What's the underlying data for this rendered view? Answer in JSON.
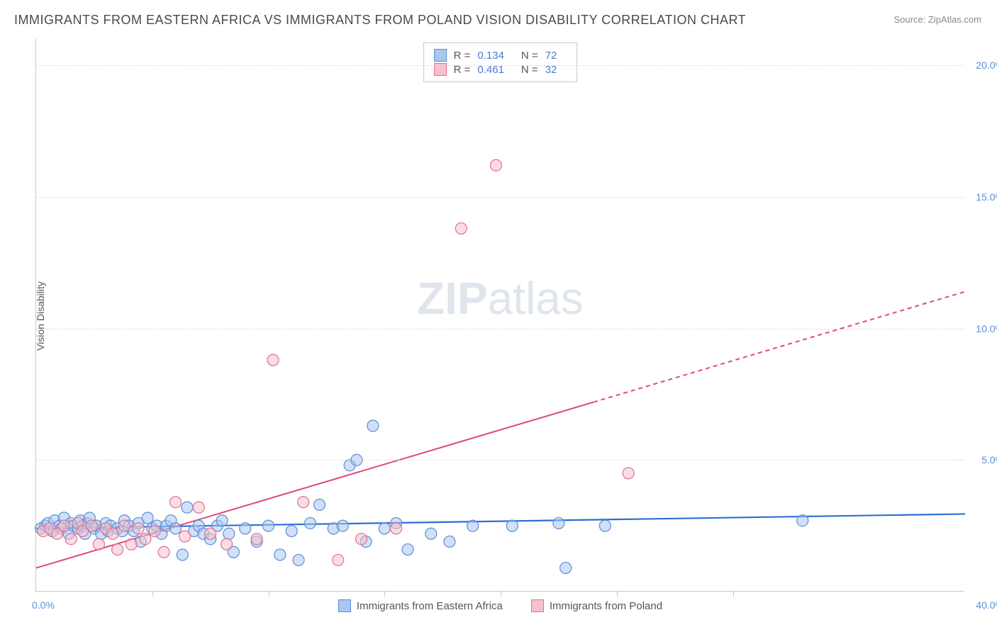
{
  "title": "IMMIGRANTS FROM EASTERN AFRICA VS IMMIGRANTS FROM POLAND VISION DISABILITY CORRELATION CHART",
  "source_prefix": "Source: ",
  "source_name": "ZipAtlas.com",
  "ylabel": "Vision Disability",
  "watermark_bold": "ZIP",
  "watermark_rest": "atlas",
  "chart": {
    "type": "scatter",
    "xlim": [
      0,
      40
    ],
    "ylim": [
      0,
      21
    ],
    "xtick_left": "0.0%",
    "xtick_right": "40.0%",
    "yticks": [
      {
        "v": 5,
        "label": "5.0%"
      },
      {
        "v": 10,
        "label": "10.0%"
      },
      {
        "v": 15,
        "label": "15.0%"
      },
      {
        "v": 20,
        "label": "20.0%"
      }
    ],
    "vgrid_x": [
      5,
      10,
      15,
      20,
      25,
      30
    ],
    "background_color": "#ffffff",
    "grid_color": "#dedede",
    "axis_color": "#c8c8c8",
    "tick_label_color": "#5b8dd6",
    "marker_radius": 8,
    "marker_opacity": 0.55,
    "series": [
      {
        "name": "Immigrants from Eastern Africa",
        "fill": "#a9c7ef",
        "stroke": "#5b8dd6",
        "legend_R": "0.134",
        "legend_N": "72",
        "trend": {
          "x1": 0,
          "y1": 2.4,
          "x2": 40,
          "y2": 2.95,
          "color": "#2a6fd6",
          "width": 2.2,
          "solid_to_x": 40
        },
        "points": [
          [
            0.2,
            2.4
          ],
          [
            0.4,
            2.5
          ],
          [
            0.5,
            2.6
          ],
          [
            0.7,
            2.3
          ],
          [
            0.8,
            2.7
          ],
          [
            1.0,
            2.5
          ],
          [
            1.1,
            2.4
          ],
          [
            1.2,
            2.8
          ],
          [
            1.4,
            2.2
          ],
          [
            1.5,
            2.6
          ],
          [
            1.6,
            2.5
          ],
          [
            1.8,
            2.4
          ],
          [
            1.9,
            2.7
          ],
          [
            2.0,
            2.5
          ],
          [
            2.1,
            2.2
          ],
          [
            2.2,
            2.6
          ],
          [
            2.3,
            2.8
          ],
          [
            2.5,
            2.4
          ],
          [
            2.6,
            2.5
          ],
          [
            2.8,
            2.2
          ],
          [
            3.0,
            2.6
          ],
          [
            3.1,
            2.3
          ],
          [
            3.2,
            2.5
          ],
          [
            3.5,
            2.4
          ],
          [
            3.7,
            2.3
          ],
          [
            3.8,
            2.7
          ],
          [
            4.0,
            2.5
          ],
          [
            4.2,
            2.3
          ],
          [
            4.4,
            2.6
          ],
          [
            4.5,
            1.9
          ],
          [
            4.8,
            2.8
          ],
          [
            5.0,
            2.4
          ],
          [
            5.2,
            2.5
          ],
          [
            5.4,
            2.2
          ],
          [
            5.6,
            2.5
          ],
          [
            5.8,
            2.7
          ],
          [
            6.0,
            2.4
          ],
          [
            6.3,
            1.4
          ],
          [
            6.5,
            3.2
          ],
          [
            6.8,
            2.3
          ],
          [
            7.0,
            2.5
          ],
          [
            7.2,
            2.2
          ],
          [
            7.5,
            2.0
          ],
          [
            7.8,
            2.5
          ],
          [
            8.0,
            2.7
          ],
          [
            8.3,
            2.2
          ],
          [
            8.5,
            1.5
          ],
          [
            9.0,
            2.4
          ],
          [
            9.5,
            1.9
          ],
          [
            10.0,
            2.5
          ],
          [
            10.5,
            1.4
          ],
          [
            11.0,
            2.3
          ],
          [
            11.3,
            1.2
          ],
          [
            11.8,
            2.6
          ],
          [
            12.2,
            3.3
          ],
          [
            12.8,
            2.4
          ],
          [
            13.2,
            2.5
          ],
          [
            13.5,
            4.8
          ],
          [
            13.8,
            5.0
          ],
          [
            14.2,
            1.9
          ],
          [
            14.5,
            6.3
          ],
          [
            15.0,
            2.4
          ],
          [
            15.5,
            2.6
          ],
          [
            16.0,
            1.6
          ],
          [
            17.0,
            2.2
          ],
          [
            17.8,
            1.9
          ],
          [
            18.8,
            2.5
          ],
          [
            20.5,
            2.5
          ],
          [
            22.5,
            2.6
          ],
          [
            22.8,
            0.9
          ],
          [
            24.5,
            2.5
          ],
          [
            33.0,
            2.7
          ]
        ]
      },
      {
        "name": "Immigrants from Poland",
        "fill": "#f4c1cd",
        "stroke": "#e56e8f",
        "legend_R": "0.461",
        "legend_N": "32",
        "trend": {
          "x1": 0,
          "y1": 0.9,
          "x2": 40,
          "y2": 11.4,
          "color": "#e04879",
          "width": 2.0,
          "solid_to_x": 24
        },
        "points": [
          [
            0.3,
            2.3
          ],
          [
            0.6,
            2.4
          ],
          [
            0.9,
            2.2
          ],
          [
            1.2,
            2.5
          ],
          [
            1.5,
            2.0
          ],
          [
            1.8,
            2.6
          ],
          [
            2.0,
            2.3
          ],
          [
            2.4,
            2.5
          ],
          [
            2.7,
            1.8
          ],
          [
            3.0,
            2.4
          ],
          [
            3.3,
            2.2
          ],
          [
            3.5,
            1.6
          ],
          [
            3.8,
            2.5
          ],
          [
            4.1,
            1.8
          ],
          [
            4.4,
            2.4
          ],
          [
            4.7,
            2.0
          ],
          [
            5.1,
            2.3
          ],
          [
            5.5,
            1.5
          ],
          [
            6.0,
            3.4
          ],
          [
            6.4,
            2.1
          ],
          [
            7.0,
            3.2
          ],
          [
            7.5,
            2.2
          ],
          [
            8.2,
            1.8
          ],
          [
            9.5,
            2.0
          ],
          [
            10.2,
            8.8
          ],
          [
            11.5,
            3.4
          ],
          [
            13.0,
            1.2
          ],
          [
            14.0,
            2.0
          ],
          [
            15.5,
            2.4
          ],
          [
            18.3,
            13.8
          ],
          [
            19.8,
            16.2
          ],
          [
            25.5,
            4.5
          ]
        ]
      }
    ]
  },
  "legend_top": {
    "R_label": "R =",
    "N_label": "N ="
  },
  "legend_bottom_labels": [
    "Immigrants from Eastern Africa",
    "Immigrants from Poland"
  ]
}
